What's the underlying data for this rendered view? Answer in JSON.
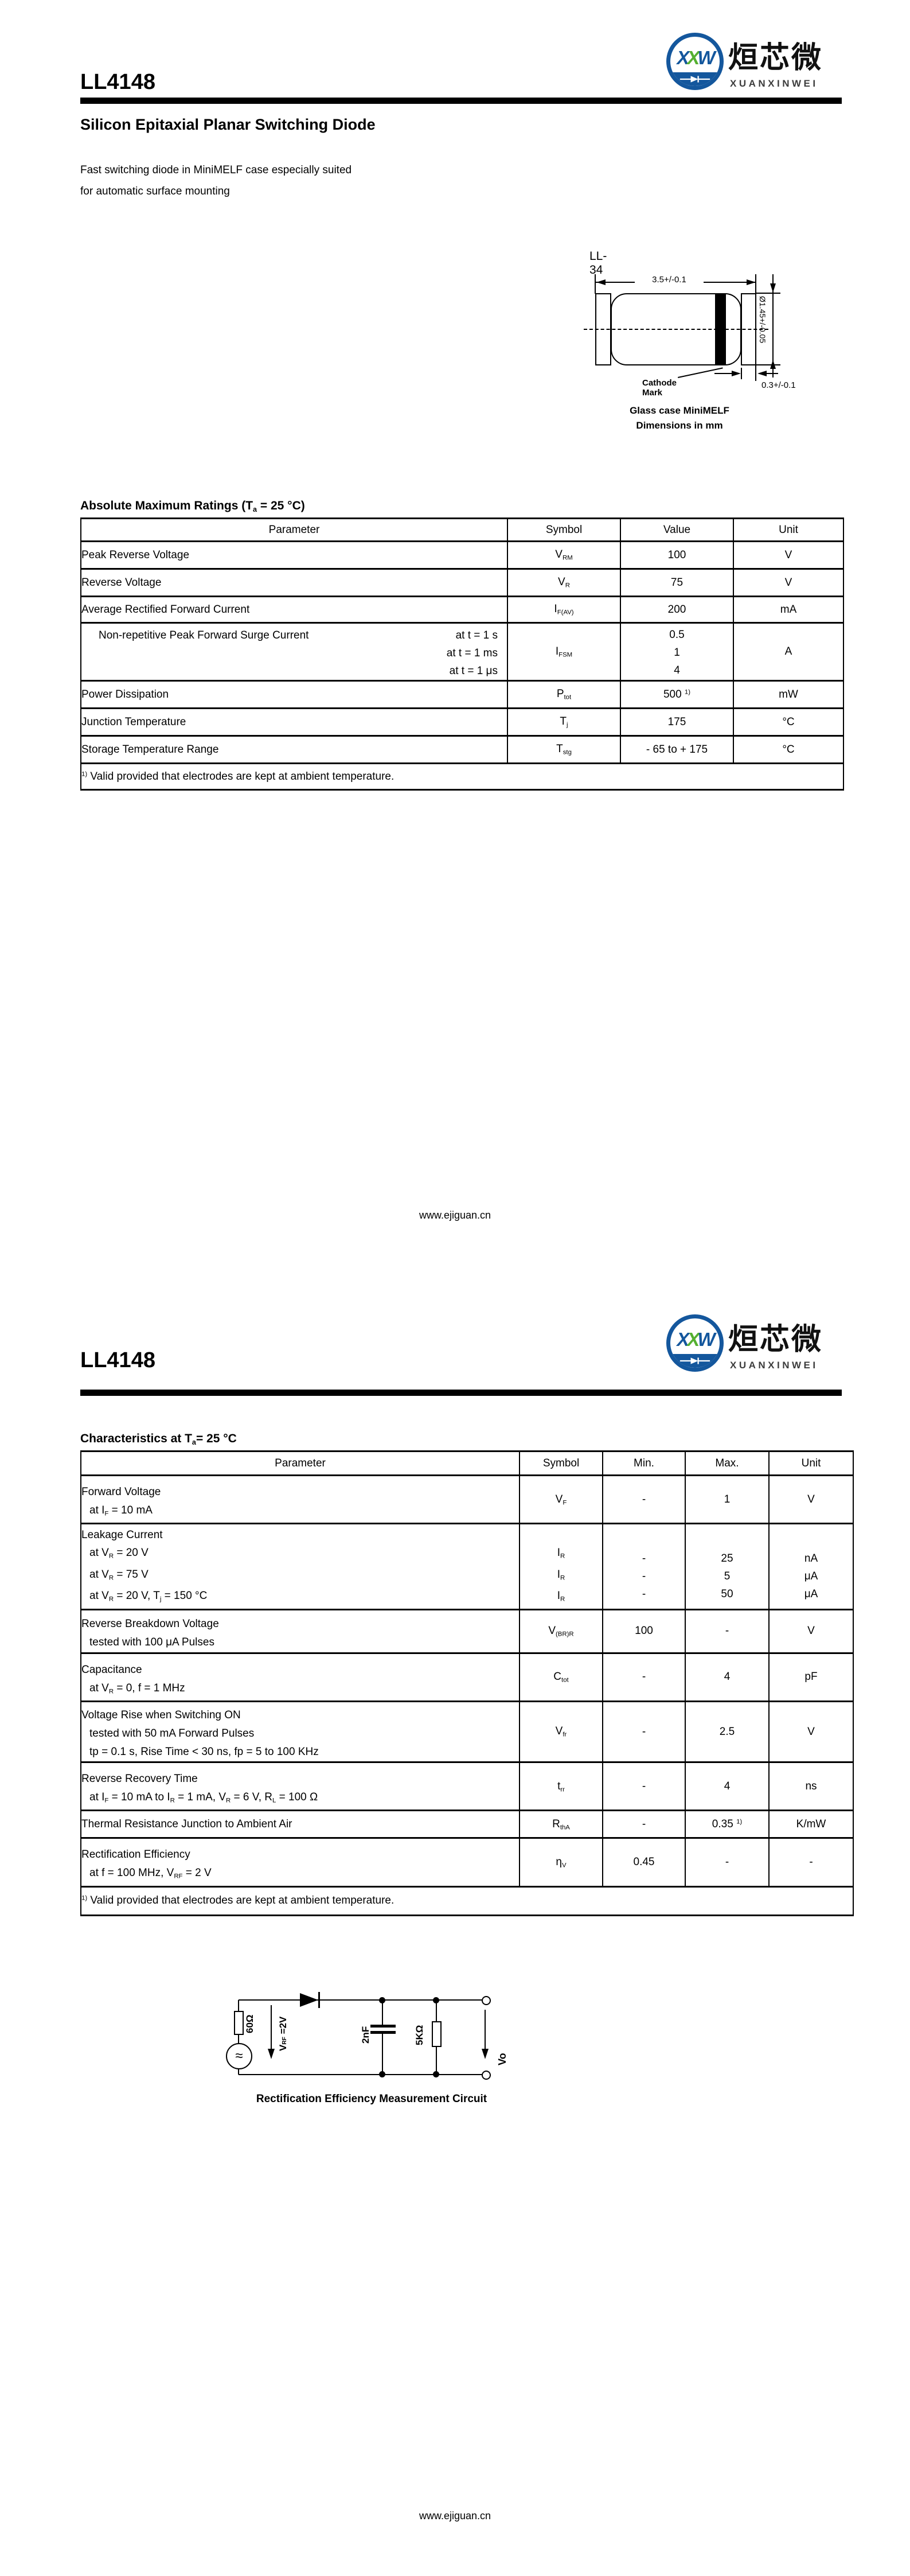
{
  "brand": {
    "logo_part1": "X",
    "logo_part2": "X",
    "logo_part3": "W",
    "company_cn": "烜芯微",
    "company_en": "XUANXINWEI",
    "blue": "#14579d",
    "green": "#55b031"
  },
  "footer": {
    "url": "www.ejiguan.cn"
  },
  "page1": {
    "part_number": "LL4148",
    "title": "Silicon Epitaxial Planar Switching Diode",
    "description": [
      "Fast switching diode in MiniMELF case especially suited",
      "for automatic surface mounting"
    ],
    "package": {
      "name": "LL-34",
      "dim_length": "3.5+/-0.1",
      "dim_diameter": "Ø1.45+/-0.05",
      "dim_cap": "0.3+/-0.1",
      "cathode_label": "Cathode Mark",
      "caption1": "Glass case MiniMELF",
      "caption2": "Dimensions in mm"
    },
    "amr": {
      "heading": [
        {
          "t": "Absolute Maximum Ratings (T"
        },
        {
          "sub": "a"
        },
        {
          "t": " = 25 °C)"
        }
      ],
      "columns": [
        "Parameter",
        "Symbol",
        "Value",
        "Unit"
      ],
      "rows": [
        {
          "param": "Peak Reverse Voltage",
          "symbol": [
            {
              "t": "V"
            },
            {
              "sub": "RM"
            }
          ],
          "value": "100",
          "unit": "V"
        },
        {
          "param": "Reverse Voltage",
          "symbol": [
            {
              "t": "V"
            },
            {
              "sub": "R"
            }
          ],
          "value": "75",
          "unit": "V"
        },
        {
          "param": "Average Rectified Forward Current",
          "symbol": [
            {
              "t": "I"
            },
            {
              "sub": "F(AV)"
            }
          ],
          "value": "200",
          "unit": "mA"
        },
        {
          "param": "Non-repetitive Peak Forward Surge Current",
          "conditions": [
            "at t = 1 s",
            "at t = 1 ms",
            "at t = 1 μs"
          ],
          "symbol": [
            {
              "t": "I"
            },
            {
              "sub": "FSM"
            }
          ],
          "values": [
            "0.5",
            "1",
            "4"
          ],
          "unit": "A"
        },
        {
          "param": "Power Dissipation",
          "symbol": [
            {
              "t": "P"
            },
            {
              "sub": "tot"
            }
          ],
          "value": [
            {
              "t": "500 "
            },
            {
              "sup": "1)"
            }
          ],
          "unit": "mW"
        },
        {
          "param": "Junction Temperature",
          "symbol": [
            {
              "t": "T"
            },
            {
              "sub": "j"
            }
          ],
          "value": "175",
          "unit": "°C"
        },
        {
          "param": "Storage Temperature Range",
          "symbol": [
            {
              "t": "T"
            },
            {
              "sub": "stg"
            }
          ],
          "value": "- 65 to + 175",
          "unit": "°C"
        }
      ],
      "footnote": [
        {
          "sup": "1)"
        },
        {
          "t": " Valid provided that electrodes are kept at ambient temperature."
        }
      ]
    }
  },
  "page2": {
    "part_number": "LL4148",
    "char": {
      "heading": [
        {
          "t": "Characteristics at T"
        },
        {
          "sub": "a"
        },
        {
          "t": "= 25 °C"
        }
      ],
      "columns": [
        "Parameter",
        "Symbol",
        "Min.",
        "Max.",
        "Unit"
      ],
      "rows": [
        {
          "param": "Forward Voltage",
          "conditions": [
            [
              {
                "t": "at I"
              },
              {
                "sub": "F"
              },
              {
                "t": " = 10 mA"
              }
            ]
          ],
          "symbol": [
            {
              "t": "V"
            },
            {
              "sub": "F"
            }
          ],
          "min": "-",
          "max": "1",
          "unit": "V"
        },
        {
          "param": "Leakage Current",
          "conditions": [
            [
              {
                "t": "at V"
              },
              {
                "sub": "R"
              },
              {
                "t": " = 20 V"
              }
            ],
            [
              {
                "t": "at V"
              },
              {
                "sub": "R"
              },
              {
                "t": " = 75 V"
              }
            ],
            [
              {
                "t": "at V"
              },
              {
                "sub": "R"
              },
              {
                "t": " = 20 V, T"
              },
              {
                "sub": "j"
              },
              {
                "t": " = 150 °C"
              }
            ]
          ],
          "symbol": [
            {
              "t": "I"
            },
            {
              "sub": "R"
            }
          ],
          "mins": [
            "-",
            "-",
            "-"
          ],
          "maxs": [
            "25",
            "5",
            "50"
          ],
          "units": [
            "nA",
            "μA",
            "μA"
          ]
        },
        {
          "param": "Reverse Breakdown Voltage",
          "conditions": [
            [
              {
                "t": "tested with 100 μA Pulses"
              }
            ]
          ],
          "symbol": [
            {
              "t": "V"
            },
            {
              "sub": "(BR)R"
            }
          ],
          "min": "100",
          "max": "-",
          "unit": "V"
        },
        {
          "param": "Capacitance",
          "conditions": [
            [
              {
                "t": "at V"
              },
              {
                "sub": "R"
              },
              {
                "t": " = 0, f = 1 MHz"
              }
            ]
          ],
          "symbol": [
            {
              "t": "C"
            },
            {
              "sub": "tot"
            }
          ],
          "min": "-",
          "max": "4",
          "unit": "pF"
        },
        {
          "param": "Voltage Rise when Switching ON",
          "conditions": [
            [
              {
                "t": "tested with 50 mA Forward Pulses"
              }
            ],
            [
              {
                "t": "tp = 0.1 s, Rise Time < 30 ns, fp = 5 to 100 KHz"
              }
            ]
          ],
          "symbol": [
            {
              "t": "V"
            },
            {
              "sub": "fr"
            }
          ],
          "min": "-",
          "max": "2.5",
          "unit": "V"
        },
        {
          "param": "Reverse Recovery Time",
          "conditions": [
            [
              {
                "t": "at I"
              },
              {
                "sub": "F"
              },
              {
                "t": " = 10 mA to I"
              },
              {
                "sub": "R"
              },
              {
                "t": " = 1 mA, V"
              },
              {
                "sub": "R"
              },
              {
                "t": " = 6 V, R"
              },
              {
                "sub": "L"
              },
              {
                "t": " = 100 Ω"
              }
            ]
          ],
          "symbol": [
            {
              "t": "t"
            },
            {
              "sub": "rr"
            }
          ],
          "min": "-",
          "max": "4",
          "unit": "ns"
        },
        {
          "param": "Thermal Resistance Junction to Ambient Air",
          "symbol": [
            {
              "t": "R"
            },
            {
              "sub": "thA"
            }
          ],
          "min": "-",
          "max": [
            {
              "t": "0.35 "
            },
            {
              "sup": "1)"
            }
          ],
          "unit": "K/mW"
        },
        {
          "param": "Rectification Efficiency",
          "conditions": [
            [
              {
                "t": "at f = 100 MHz, V"
              },
              {
                "sub": "RF"
              },
              {
                "t": " = 2 V"
              }
            ]
          ],
          "symbol": [
            {
              "t": "η"
            },
            {
              "sub": "V"
            }
          ],
          "min": "0.45",
          "max": "-",
          "unit": "-"
        }
      ],
      "footnote": [
        {
          "sup": "1)"
        },
        {
          "t": " Valid provided that electrodes are kept at ambient temperature."
        }
      ]
    },
    "circuit": {
      "source_glyph": "≈",
      "r1_label": "60Ω",
      "vrf_label": [
        {
          "t": "V"
        },
        {
          "sub": "RF"
        },
        {
          "t": " =2V"
        }
      ],
      "cap_label": "2nF",
      "r2_label": "5KΩ",
      "vo_label": "Vo",
      "caption": "Rectification Efficiency Measurement Circuit"
    }
  }
}
